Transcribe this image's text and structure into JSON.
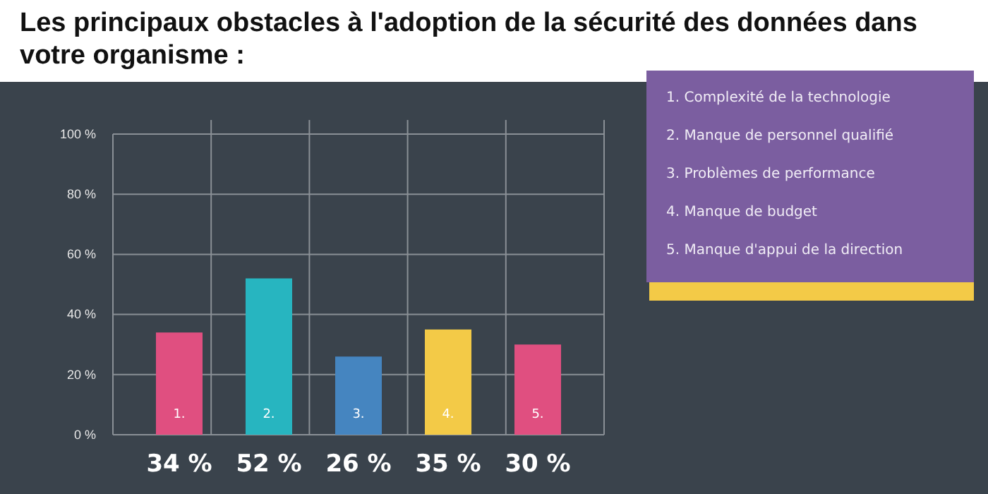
{
  "chart_data": {
    "type": "bar",
    "title": "Les principaux obstacles à l'adoption de la sécurité des données dans votre organisme :",
    "categories": [
      "1.",
      "2.",
      "3.",
      "4.",
      "5."
    ],
    "values": [
      34,
      52,
      26,
      35,
      30
    ],
    "colors": [
      "#e04f80",
      "#27b5c0",
      "#4585c0",
      "#f3ca47",
      "#e04f80"
    ],
    "value_labels": [
      "34 %",
      "52 %",
      "26 %",
      "35 %",
      "30 %"
    ],
    "ylim": [
      0,
      100
    ],
    "yticks": [
      {
        "value": 0,
        "label": "0 %"
      },
      {
        "value": 20,
        "label": "20 %"
      },
      {
        "value": 40,
        "label": "40 %"
      },
      {
        "value": 60,
        "label": "60 %"
      },
      {
        "value": 80,
        "label": "80 %"
      },
      {
        "value": 100,
        "label": "100 %"
      }
    ],
    "grid": true,
    "annotations": [
      "1. Complexité de la technologie",
      "2. Manque de personnel qualifié",
      "3. Problèmes de performance",
      "4. Manque de budget",
      "5. Manque d'appui de la direction"
    ]
  }
}
